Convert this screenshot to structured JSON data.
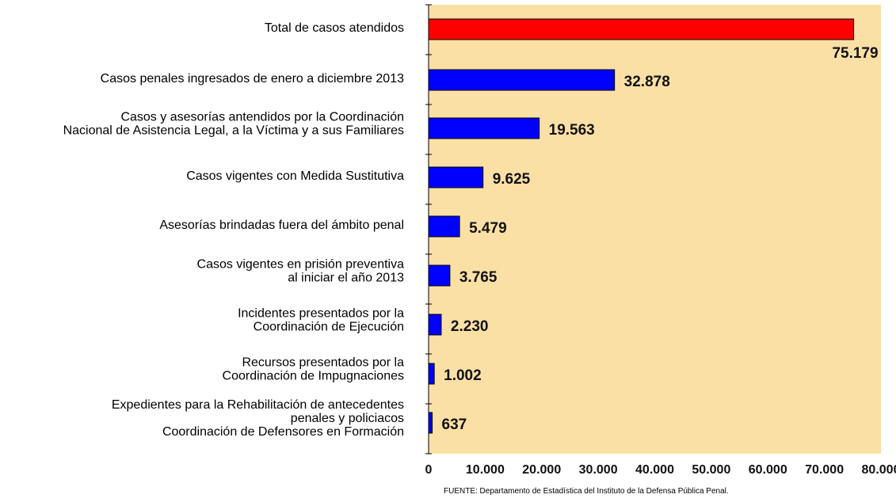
{
  "chart_data": {
    "type": "bar",
    "orientation": "horizontal",
    "categories": [
      [
        "Total de casos atendidos"
      ],
      [
        "Casos penales ingresados de enero a diciembre 2013"
      ],
      [
        "Casos y asesorías antendidos por la  Coordinación",
        "Nacional de Asistencia Legal, a la Víctima y a sus Familiares"
      ],
      [
        "Casos vigentes con Medida Sustitutiva"
      ],
      [
        "Asesorías brindadas fuera del ámbito penal"
      ],
      [
        "Casos vigentes en prisión preventiva",
        "al iniciar el año 2013"
      ],
      [
        "Incidentes presentados por la",
        "Coordinación de Ejecución"
      ],
      [
        "Recursos presentados por la",
        "Coordinación de Impugnaciones"
      ],
      [
        "Expedientes para la Rehabilitación de antecedentes",
        "penales y  policiacos",
        "Coordinación de Defensores en Formación"
      ]
    ],
    "values": [
      75179,
      32878,
      19563,
      9625,
      5479,
      3765,
      2230,
      1002,
      637
    ],
    "value_labels": [
      "75.179",
      "32.878",
      "19.563",
      "9.625",
      "5.479",
      "3.765",
      "2.230",
      "1.002",
      "637"
    ],
    "bar_colors": [
      "#ff0000",
      "#0000ff",
      "#0000ff",
      "#0000ff",
      "#0000ff",
      "#0000ff",
      "#0000ff",
      "#0000ff",
      "#0000ff"
    ],
    "xlim": [
      0,
      80000
    ],
    "x_ticks": [
      0,
      10000,
      20000,
      30000,
      40000,
      50000,
      60000,
      70000,
      80000
    ],
    "x_tick_labels": [
      "0",
      "10.000",
      "20.000",
      "30.000",
      "40.000",
      "50.000",
      "60.000",
      "70.000",
      "80.000"
    ],
    "plot_background": "#fbe0a6",
    "grid": false
  },
  "source_note": "FUENTE: Departamento de Estadística del Instituto de la Defensa Pública Penal."
}
